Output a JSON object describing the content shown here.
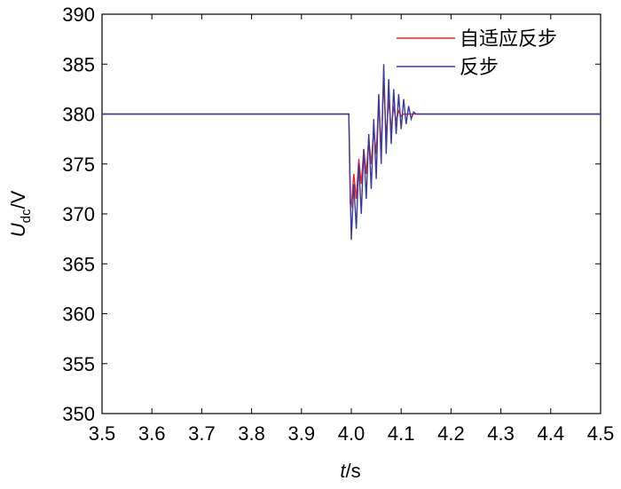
{
  "chart_data": {
    "type": "line",
    "xlabel": [
      "t",
      "/s"
    ],
    "ylabel": [
      "U",
      "dc",
      "/V"
    ],
    "x": [
      3.5,
      3.995,
      3.998,
      4.0,
      4.005,
      4.01,
      4.015,
      4.02,
      4.025,
      4.03,
      4.035,
      4.04,
      4.045,
      4.05,
      4.055,
      4.06,
      4.065,
      4.07,
      4.075,
      4.08,
      4.085,
      4.09,
      4.095,
      4.1,
      4.105,
      4.11,
      4.115,
      4.12,
      4.125,
      4.13,
      4.5
    ],
    "series": [
      {
        "name": "自适应反步",
        "color": "#e8262b",
        "values": [
          380,
          380,
          371,
          370.8,
          374,
          371.5,
          375.5,
          373,
          376.5,
          374,
          377.5,
          375,
          378.5,
          376,
          381.5,
          376.5,
          383.5,
          377.5,
          381.5,
          378.5,
          380.8,
          379.3,
          380.3,
          379.8,
          380,
          380,
          380,
          380,
          380,
          380,
          380
        ]
      },
      {
        "name": "反步",
        "color": "#3a3a9a",
        "values": [
          380,
          380,
          372,
          367.4,
          373,
          368.5,
          375,
          370,
          376.5,
          371.5,
          378,
          372.5,
          379.5,
          373.5,
          382,
          375,
          385,
          376,
          383.5,
          377,
          382.5,
          378,
          382,
          378.5,
          381.5,
          379,
          380.8,
          379.5,
          380.2,
          380,
          380
        ]
      }
    ],
    "xlim": [
      3.5,
      4.5
    ],
    "xticks": [
      3.5,
      3.6,
      3.7,
      3.8,
      3.9,
      {
        "value": 4,
        "label": "4.0"
      },
      4.1,
      4.2,
      4.3,
      4.4,
      4.5
    ],
    "ylim": [
      350,
      390
    ],
    "yticks": [
      350,
      355,
      360,
      365,
      370,
      375,
      380,
      385,
      390
    ],
    "grid": false,
    "legend": "upper-right"
  }
}
